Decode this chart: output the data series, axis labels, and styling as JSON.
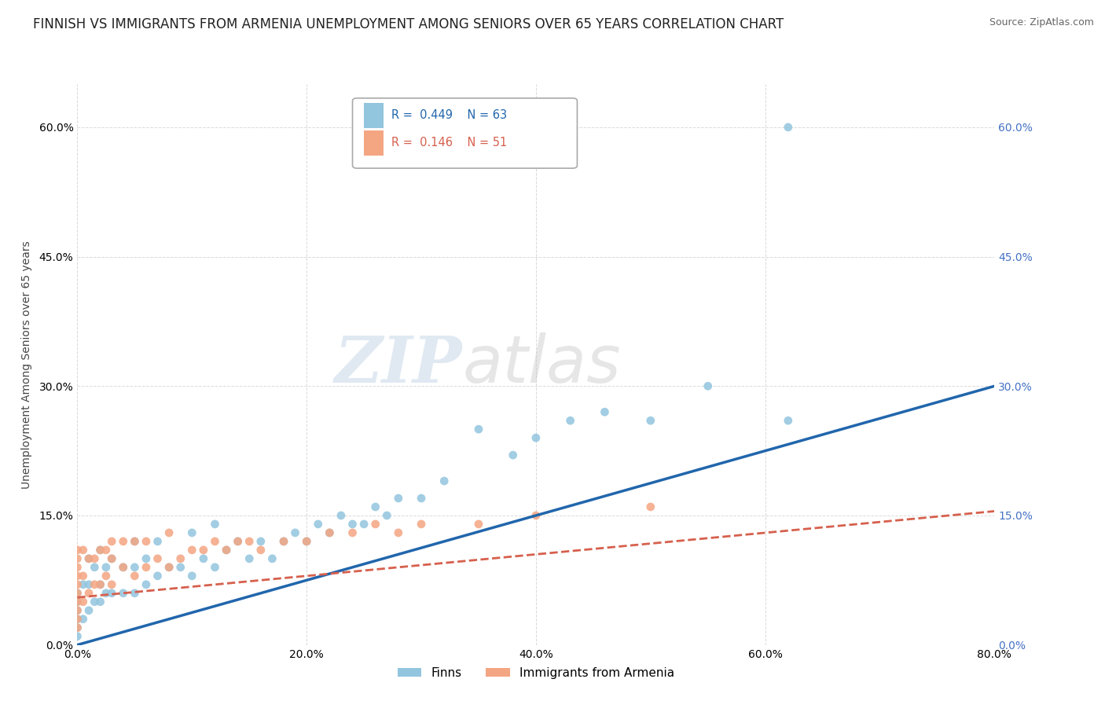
{
  "title": "FINNISH VS IMMIGRANTS FROM ARMENIA UNEMPLOYMENT AMONG SENIORS OVER 65 YEARS CORRELATION CHART",
  "source": "Source: ZipAtlas.com",
  "ylabel": "Unemployment Among Seniors over 65 years",
  "xlim": [
    0.0,
    0.8
  ],
  "ylim": [
    0.0,
    0.65
  ],
  "yticks": [
    0.0,
    0.15,
    0.3,
    0.45,
    0.6
  ],
  "ytick_labels": [
    "0.0%",
    "15.0%",
    "30.0%",
    "45.0%",
    "60.0%"
  ],
  "xticks": [
    0.0,
    0.2,
    0.4,
    0.6,
    0.8
  ],
  "xtick_labels": [
    "0.0%",
    "20.0%",
    "40.0%",
    "60.0%",
    "80.0%"
  ],
  "watermark_zip": "ZIP",
  "watermark_atlas": "atlas",
  "legend_r_finns": "0.449",
  "legend_n_finns": "63",
  "legend_r_armenia": "0.146",
  "legend_n_armenia": "51",
  "color_finns": "#92c5de",
  "color_armenia": "#f4a582",
  "color_trendline_finns": "#2166ac",
  "color_trendline_armenia": "#d6604d",
  "trendline_finns_x0": 0.0,
  "trendline_finns_y0": 0.0,
  "trendline_finns_x1": 0.8,
  "trendline_finns_y1": 0.3,
  "trendline_armenia_x0": 0.0,
  "trendline_armenia_y0": 0.055,
  "trendline_armenia_x1": 0.8,
  "trendline_armenia_y1": 0.155,
  "background_color": "#ffffff",
  "grid_color": "#d0d0d0",
  "title_fontsize": 12,
  "axis_fontsize": 10,
  "tick_fontsize": 10,
  "right_axis_color": "#4472c4",
  "finns_x": [
    0.0,
    0.0,
    0.0,
    0.0,
    0.0,
    0.0,
    0.005,
    0.005,
    0.01,
    0.01,
    0.01,
    0.015,
    0.015,
    0.02,
    0.02,
    0.02,
    0.025,
    0.025,
    0.03,
    0.03,
    0.04,
    0.04,
    0.05,
    0.05,
    0.05,
    0.06,
    0.06,
    0.07,
    0.07,
    0.08,
    0.09,
    0.1,
    0.1,
    0.11,
    0.12,
    0.12,
    0.13,
    0.14,
    0.15,
    0.16,
    0.17,
    0.18,
    0.19,
    0.2,
    0.21,
    0.22,
    0.23,
    0.24,
    0.25,
    0.26,
    0.27,
    0.28,
    0.3,
    0.32,
    0.35,
    0.38,
    0.4,
    0.43,
    0.46,
    0.5,
    0.55,
    0.62,
    0.62
  ],
  "finns_y": [
    0.01,
    0.02,
    0.03,
    0.04,
    0.05,
    0.06,
    0.03,
    0.07,
    0.04,
    0.07,
    0.1,
    0.05,
    0.09,
    0.05,
    0.07,
    0.11,
    0.06,
    0.09,
    0.06,
    0.1,
    0.06,
    0.09,
    0.06,
    0.09,
    0.12,
    0.07,
    0.1,
    0.08,
    0.12,
    0.09,
    0.09,
    0.08,
    0.13,
    0.1,
    0.09,
    0.14,
    0.11,
    0.12,
    0.1,
    0.12,
    0.1,
    0.12,
    0.13,
    0.12,
    0.14,
    0.13,
    0.15,
    0.14,
    0.14,
    0.16,
    0.15,
    0.17,
    0.17,
    0.19,
    0.25,
    0.22,
    0.24,
    0.26,
    0.27,
    0.26,
    0.3,
    0.26,
    0.6
  ],
  "armenia_x": [
    0.0,
    0.0,
    0.0,
    0.0,
    0.0,
    0.0,
    0.0,
    0.0,
    0.0,
    0.0,
    0.005,
    0.005,
    0.005,
    0.01,
    0.01,
    0.015,
    0.015,
    0.02,
    0.02,
    0.025,
    0.025,
    0.03,
    0.03,
    0.03,
    0.04,
    0.04,
    0.05,
    0.05,
    0.06,
    0.06,
    0.07,
    0.08,
    0.08,
    0.09,
    0.1,
    0.11,
    0.12,
    0.13,
    0.14,
    0.15,
    0.16,
    0.18,
    0.2,
    0.22,
    0.24,
    0.26,
    0.28,
    0.3,
    0.35,
    0.4,
    0.5
  ],
  "armenia_y": [
    0.02,
    0.03,
    0.04,
    0.05,
    0.06,
    0.07,
    0.08,
    0.09,
    0.1,
    0.11,
    0.05,
    0.08,
    0.11,
    0.06,
    0.1,
    0.07,
    0.1,
    0.07,
    0.11,
    0.08,
    0.11,
    0.07,
    0.1,
    0.12,
    0.09,
    0.12,
    0.08,
    0.12,
    0.09,
    0.12,
    0.1,
    0.09,
    0.13,
    0.1,
    0.11,
    0.11,
    0.12,
    0.11,
    0.12,
    0.12,
    0.11,
    0.12,
    0.12,
    0.13,
    0.13,
    0.14,
    0.13,
    0.14,
    0.14,
    0.15,
    0.16
  ]
}
